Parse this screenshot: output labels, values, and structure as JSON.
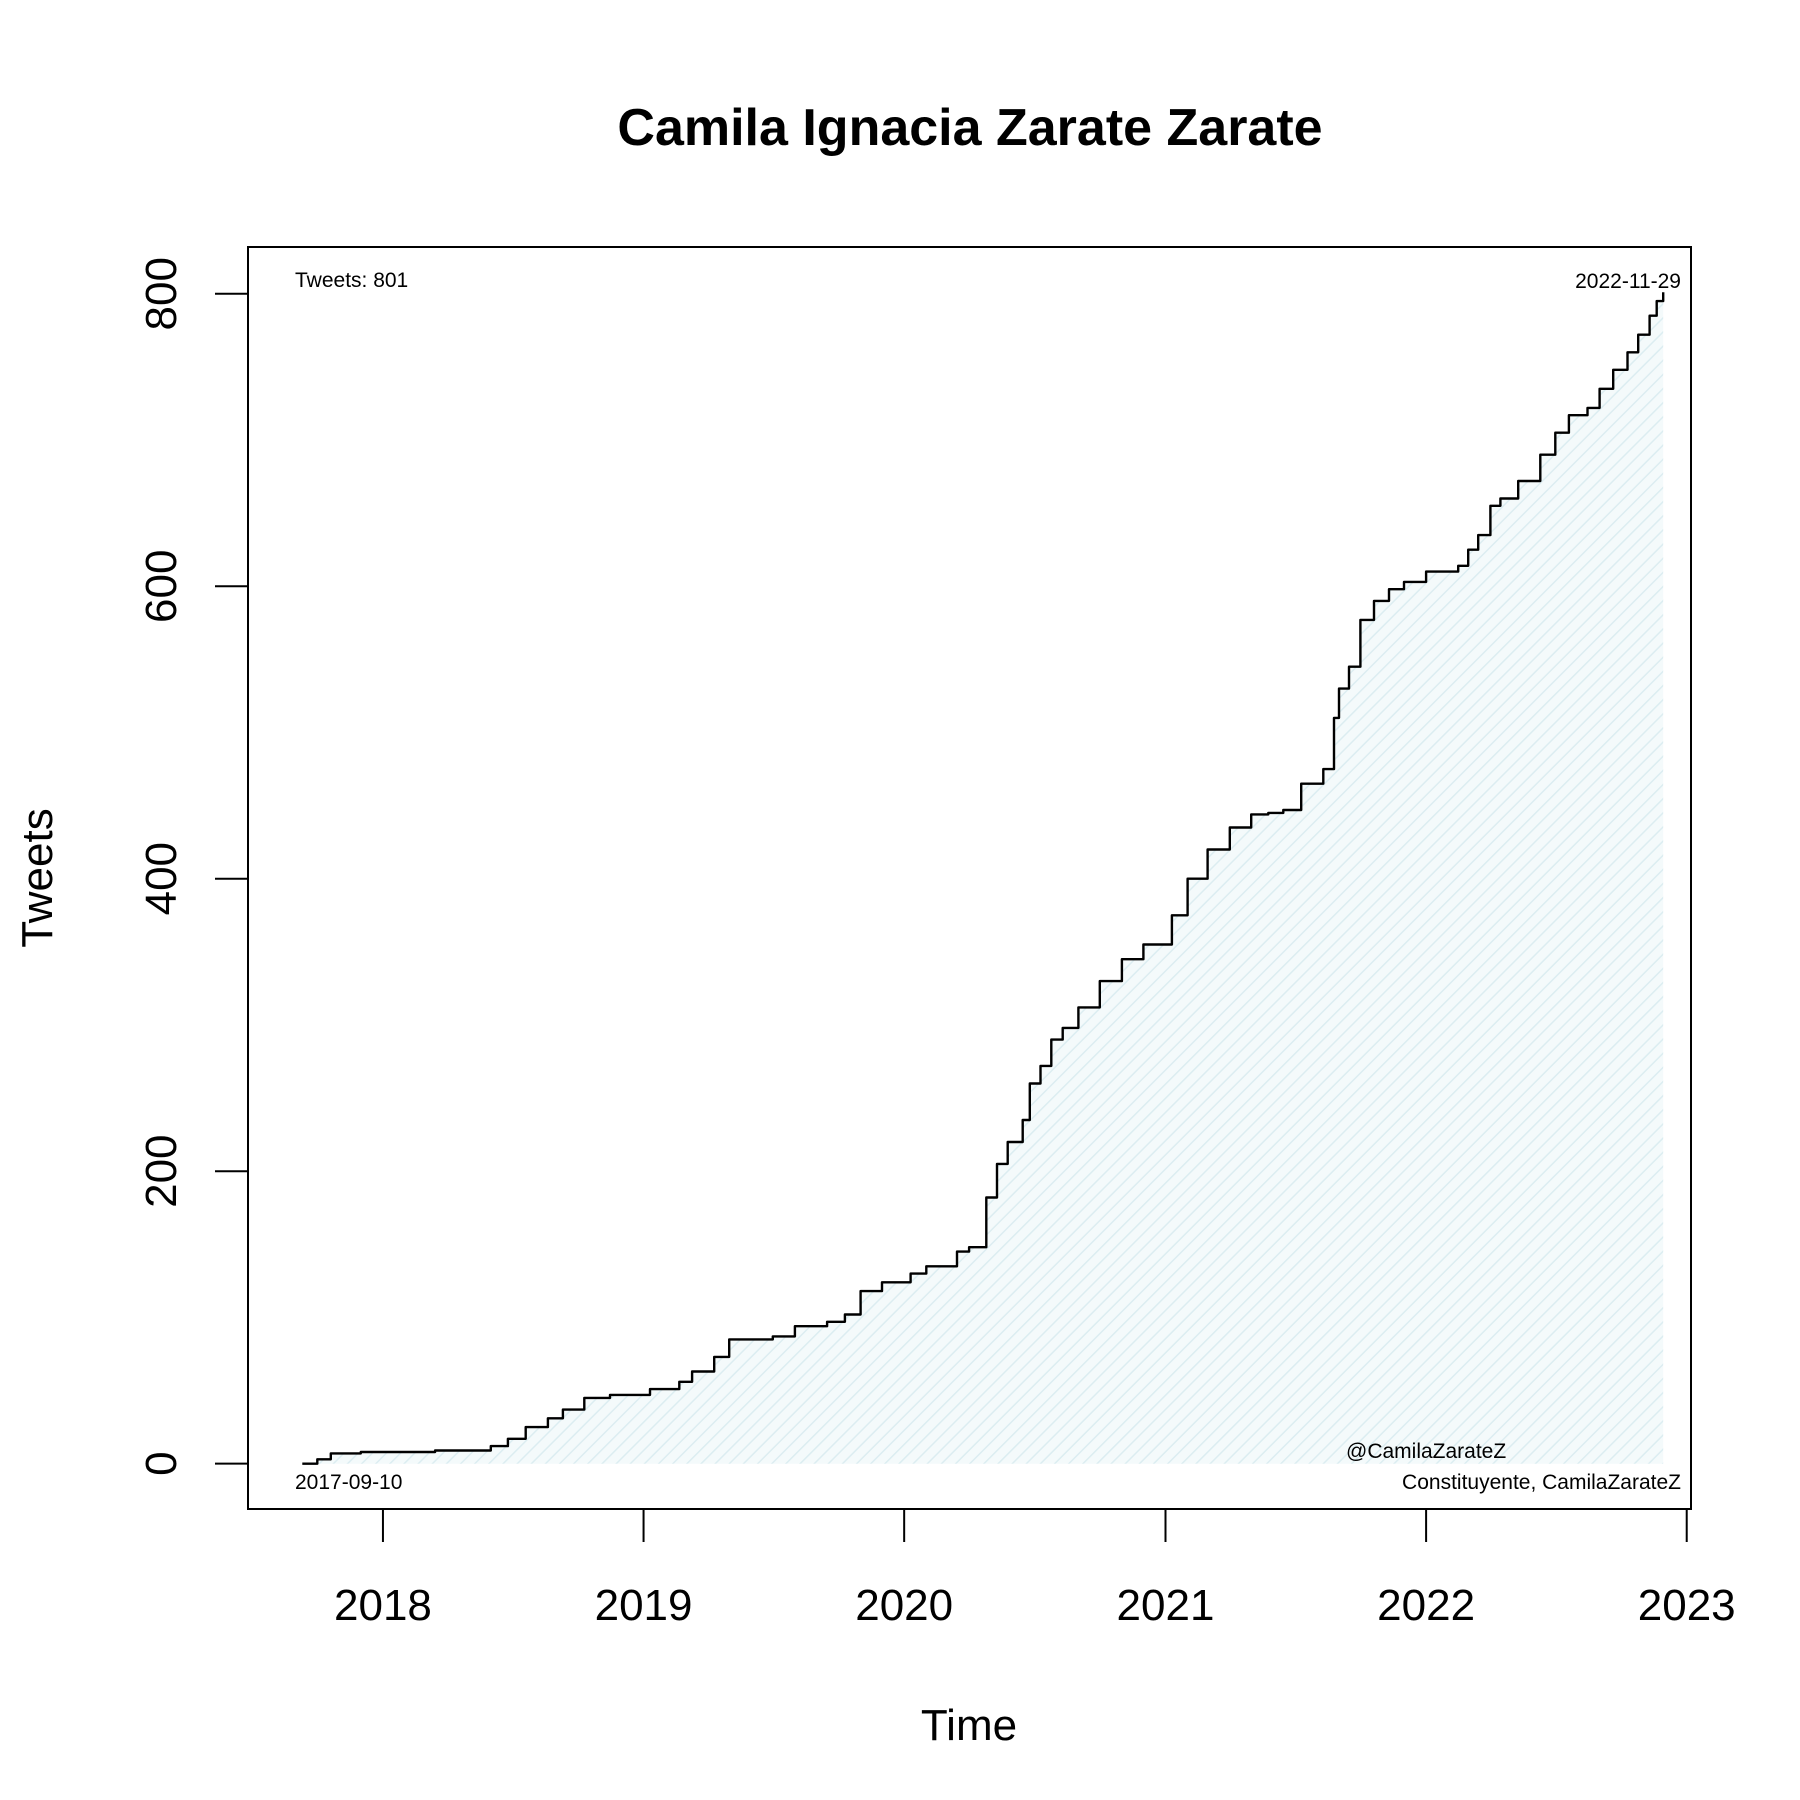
{
  "chart_data": {
    "type": "area",
    "title": "Camila Ignacia Zarate Zarate",
    "xlabel": "Time",
    "ylabel": "Tweets",
    "x_ticks": [
      "2018",
      "2019",
      "2020",
      "2021",
      "2022",
      "2023"
    ],
    "y_ticks": [
      "0",
      "200",
      "400",
      "600",
      "800"
    ],
    "xlim": [
      "2017-06-26",
      "2023-01-07"
    ],
    "ylim": [
      -31,
      832
    ],
    "grid": false,
    "legend": "none",
    "fill_color": "#e8f4f6",
    "line_color": "#000000",
    "annotations": {
      "tweet_count": "Tweets: 801",
      "end_date": "2022-11-29",
      "start_date": "2017-09-10",
      "handle": "@CamilaZarateZ",
      "description": "Constituyente, CamilaZarateZ"
    },
    "series": [
      {
        "x": [
          "2017-09-10",
          "2017-10-01",
          "2017-10-20",
          "2017-12-01",
          "2018-03-15",
          "2018-06-01",
          "2018-06-25",
          "2018-07-20",
          "2018-08-20",
          "2018-09-10",
          "2018-10-10",
          "2018-11-15",
          "2019-01-10",
          "2019-02-20",
          "2019-03-10",
          "2019-04-10",
          "2019-05-01",
          "2019-07-01",
          "2019-08-01",
          "2019-09-15",
          "2019-10-10",
          "2019-11-01",
          "2019-12-01",
          "2020-01-10",
          "2020-02-01",
          "2020-03-15",
          "2020-04-01",
          "2020-04-25",
          "2020-05-10",
          "2020-05-25",
          "2020-06-15",
          "2020-06-25",
          "2020-07-10",
          "2020-07-25",
          "2020-08-10",
          "2020-09-01",
          "2020-10-01",
          "2020-11-01",
          "2020-12-01",
          "2021-01-10",
          "2021-02-01",
          "2021-03-01",
          "2021-04-01",
          "2021-05-01",
          "2021-05-25",
          "2021-06-15",
          "2021-07-10",
          "2021-08-10",
          "2021-08-25",
          "2021-09-01",
          "2021-09-15",
          "2021-10-01",
          "2021-10-20",
          "2021-11-10",
          "2021-12-01",
          "2022-01-01",
          "2022-02-15",
          "2022-03-01",
          "2022-03-15",
          "2022-04-01",
          "2022-04-15",
          "2022-05-10",
          "2022-06-10",
          "2022-07-01",
          "2022-07-20",
          "2022-08-15",
          "2022-09-01",
          "2022-09-20",
          "2022-10-10",
          "2022-10-25",
          "2022-11-10",
          "2022-11-20",
          "2022-11-29"
        ],
        "y": [
          0,
          3,
          7,
          8,
          9,
          12,
          17,
          25,
          31,
          37,
          45,
          47,
          51,
          56,
          63,
          73,
          85,
          87,
          94,
          97,
          102,
          118,
          124,
          130,
          135,
          145,
          148,
          182,
          205,
          220,
          235,
          260,
          272,
          290,
          298,
          312,
          330,
          345,
          355,
          375,
          400,
          420,
          435,
          444,
          445,
          447,
          465,
          475,
          510,
          530,
          545,
          577,
          590,
          598,
          603,
          610,
          614,
          625,
          635,
          655,
          660,
          672,
          690,
          705,
          717,
          722,
          735,
          748,
          760,
          772,
          785,
          795,
          801
        ]
      }
    ]
  }
}
